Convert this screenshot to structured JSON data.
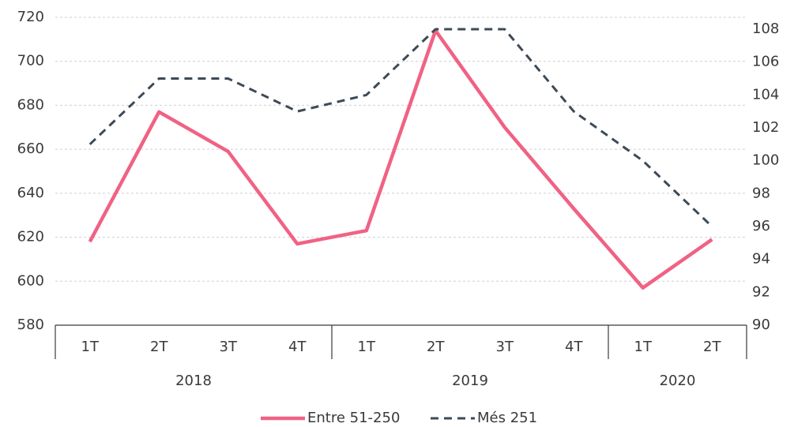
{
  "chart_data": {
    "type": "line",
    "groups": [
      {
        "label": "2018",
        "categories": [
          "1T",
          "2T",
          "3T",
          "4T"
        ]
      },
      {
        "label": "2019",
        "categories": [
          "1T",
          "2T",
          "3T",
          "4T"
        ]
      },
      {
        "label": "2020",
        "categories": [
          "1T",
          "2T"
        ]
      }
    ],
    "series": [
      {
        "name": "Entre 51-250",
        "color": "#f06283",
        "values": [
          618,
          677,
          659,
          617,
          623,
          714,
          670,
          633,
          597,
          619
        ]
      },
      {
        "name": "Més 251",
        "color": "#3d4a57",
        "axis": "y2",
        "dash": true,
        "values": [
          101,
          105,
          105,
          103,
          104,
          108,
          108,
          103,
          100,
          96
        ]
      }
    ],
    "ylim": [
      580,
      720
    ],
    "yticks": [
      580,
      600,
      620,
      640,
      660,
      680,
      700,
      720
    ],
    "y2lim": [
      90,
      108
    ],
    "y2ticks": [
      90,
      92,
      94,
      96,
      98,
      100,
      102,
      104,
      106,
      108
    ],
    "grid": true,
    "legend": "bottom"
  }
}
